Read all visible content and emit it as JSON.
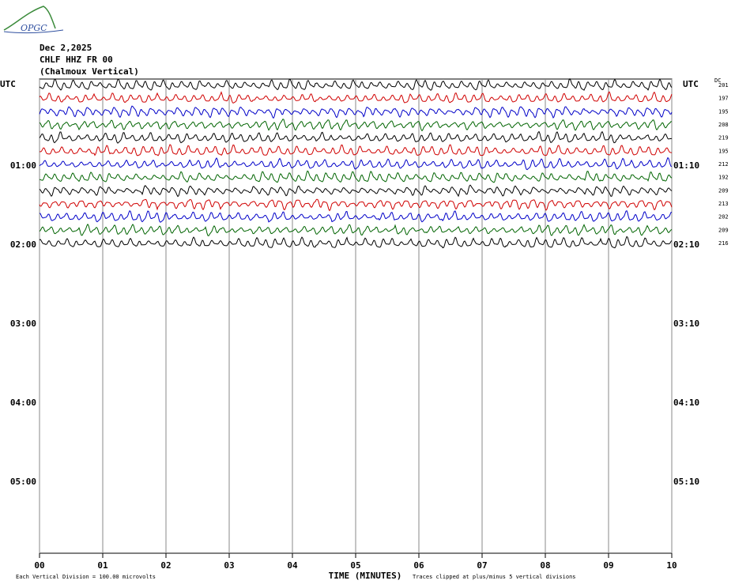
{
  "header": {
    "logo": "OPGC",
    "date": "Dec 2,2025",
    "station": "CHLF HHZ FR 00",
    "description": "(Chalmoux Vertical)"
  },
  "chart_data": {
    "type": "helicorder",
    "left_label": "UTC",
    "right_label": "UTC",
    "dc_label": "DC",
    "left_hours": [
      "01:00",
      "02:00",
      "03:00",
      "04:00",
      "05:00"
    ],
    "right_hours": [
      "01:10",
      "02:10",
      "03:10",
      "04:10",
      "05:10"
    ],
    "xlim": [
      0,
      10
    ],
    "xticks": [
      {
        "value": 0,
        "label": "00"
      },
      {
        "value": 1,
        "label": "01"
      },
      {
        "value": 2,
        "label": "02"
      },
      {
        "value": 3,
        "label": "03"
      },
      {
        "value": 4,
        "label": "04"
      },
      {
        "value": 5,
        "label": "05"
      },
      {
        "value": 6,
        "label": "06"
      },
      {
        "value": 7,
        "label": "07"
      },
      {
        "value": 8,
        "label": "08"
      },
      {
        "value": 9,
        "label": "09"
      },
      {
        "value": 10,
        "label": "10"
      }
    ],
    "x_label": "TIME (MINUTES)",
    "traces": [
      {
        "color": "#000000",
        "dc": 201
      },
      {
        "color": "#d00000",
        "dc": 197
      },
      {
        "color": "#0000c8",
        "dc": 195
      },
      {
        "color": "#006400",
        "dc": 208
      },
      {
        "color": "#000000",
        "dc": 219
      },
      {
        "color": "#d00000",
        "dc": 195
      },
      {
        "color": "#0000c8",
        "dc": 212
      },
      {
        "color": "#006400",
        "dc": 192
      },
      {
        "color": "#000000",
        "dc": 209
      },
      {
        "color": "#d00000",
        "dc": 213
      },
      {
        "color": "#0000c8",
        "dc": 202
      },
      {
        "color": "#006400",
        "dc": 209
      },
      {
        "color": "#000000",
        "dc": 216
      }
    ],
    "footnote_left": "Each Vertical Division =  100.00 microvolts",
    "footnote_right": "Traces clipped at plus/minus 5 vertical divisions"
  }
}
